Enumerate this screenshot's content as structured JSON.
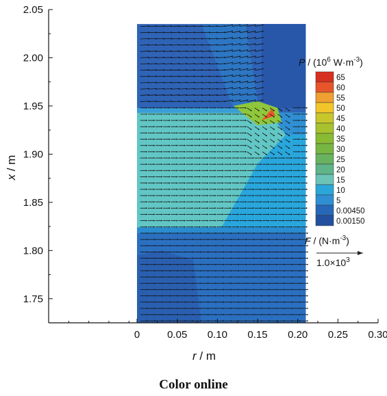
{
  "chart_data": {
    "type": "heatmap",
    "title": "",
    "xlabel_var": "r",
    "xlabel_unit": " / m",
    "ylabel_var": "x",
    "ylabel_unit": " / m",
    "xlim": [
      -0.11,
      0.3
    ],
    "ylim": [
      1.725,
      2.05
    ],
    "x_ticks": [
      "0",
      "0.05",
      "0.10",
      "0.15",
      "0.20",
      "0.25",
      "0.30"
    ],
    "y_ticks": [
      "1.75",
      "1.80",
      "1.85",
      "1.90",
      "1.95",
      "2.00",
      "2.05"
    ],
    "x_tick_values": [
      0,
      0.05,
      0.1,
      0.15,
      0.2,
      0.25,
      0.3
    ],
    "y_tick_values": [
      1.75,
      1.8,
      1.85,
      1.9,
      1.95,
      2.0,
      2.05
    ],
    "domain": {
      "r": [
        0,
        0.21
      ],
      "x": [
        1.725,
        2.035
      ]
    },
    "colorbar": {
      "title_var": "P",
      "title_unit": " / (10",
      "title_exp": "6",
      "title_tail": " W·m",
      "title_exp2": "-3",
      "title_close": ")",
      "levels": [
        "65",
        "60",
        "55",
        "50",
        "45",
        "40",
        "35",
        "30",
        "25",
        "20",
        "15",
        "10",
        "5",
        "0.00450",
        "0.00150"
      ],
      "colors": [
        "#d7301f",
        "#e8552a",
        "#f0a030",
        "#f2c62a",
        "#c7c72c",
        "#a8c22e",
        "#89bb32",
        "#78b643",
        "#69b360",
        "#5fb48a",
        "#6cc3b8",
        "#2aa7d8",
        "#2f8fd2",
        "#2767b8",
        "#23509e"
      ]
    },
    "force_legend": {
      "label_var": "F",
      "label_unit": " / (N·m",
      "label_exp": "-3",
      "label_close": ")",
      "scale_text": "1.0×10",
      "scale_exp": "3"
    },
    "regions": [
      {
        "name": "top-left-dark",
        "P_level": "0.00150",
        "color": "#2f63b6"
      },
      {
        "name": "top-diagonal-band",
        "P_level": "0.00450",
        "color": "#2d76c4"
      },
      {
        "name": "right-block",
        "P_level": "0.00150",
        "color": "#2856a9"
      },
      {
        "name": "charge-zone",
        "P_level": "15",
        "color": "#62c6c4"
      },
      {
        "name": "mid-right-blue",
        "P_level": "10",
        "color": "#29a6dc"
      },
      {
        "name": "bottom-zone",
        "P_level": "0.00450",
        "color": "#2b6fc0"
      },
      {
        "name": "hot-spot",
        "P_level": "65",
        "color": "#e8552a"
      }
    ]
  },
  "caption": "Color online"
}
